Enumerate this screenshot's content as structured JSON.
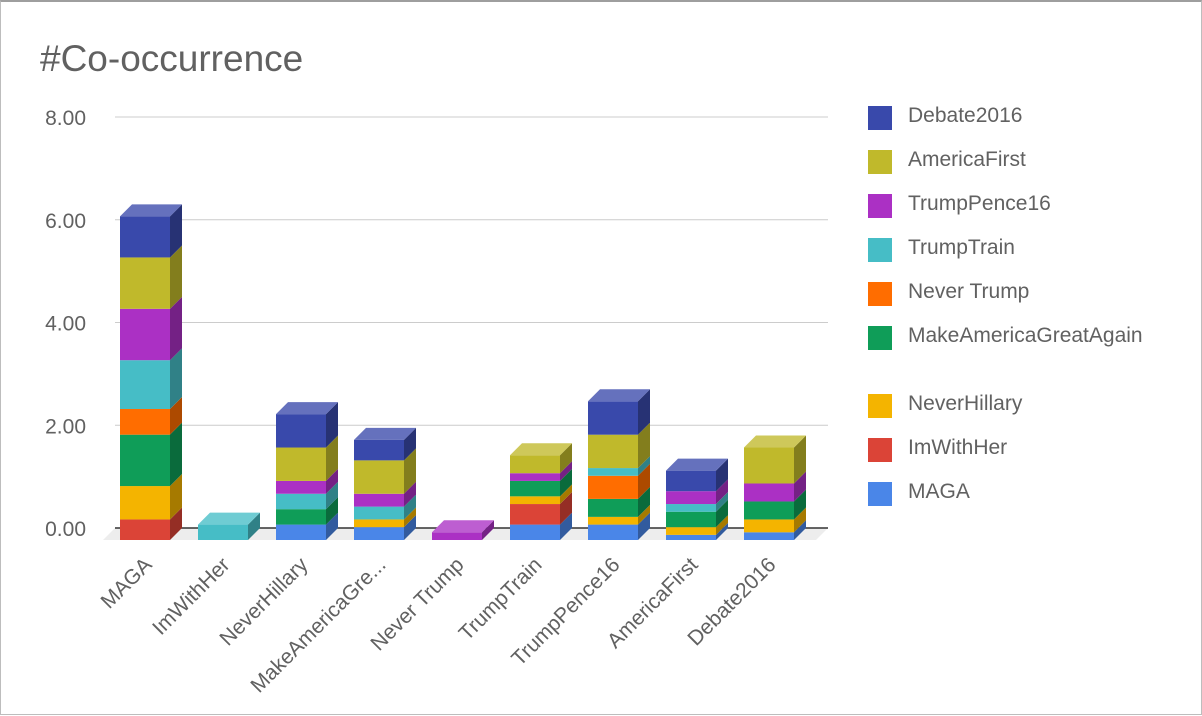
{
  "chart_data": {
    "type": "bar",
    "stacked": true,
    "three_d": true,
    "title": "#Co-occurrence",
    "categories": [
      "MAGA",
      "ImWithHer",
      "NeverHillary",
      "MakeAmericaGre...",
      "Never Trump",
      "TrumpTrain",
      "TrumpPence16",
      "AmericaFirst",
      "Debate2016"
    ],
    "y_ticks": [
      "0.00",
      "2.00",
      "4.00",
      "6.00",
      "8.00"
    ],
    "ylim": [
      0,
      8
    ],
    "grid": true,
    "legend_position": "right",
    "series": [
      {
        "name": "MAGA",
        "color": "#4a86e8",
        "values": [
          0,
          0,
          0.3,
          0.25,
          0,
          0.3,
          0.3,
          0.1,
          0.15
        ]
      },
      {
        "name": "ImWithHer",
        "color": "#db4437",
        "values": [
          0.4,
          0,
          0,
          0,
          0,
          0.4,
          0,
          0,
          0
        ]
      },
      {
        "name": "NeverHillary",
        "color": "#f4b400",
        "values": [
          0.65,
          0,
          0,
          0.15,
          0,
          0.15,
          0.15,
          0.15,
          0.25
        ]
      },
      {
        "name": "MakeAmericaGreatAgain",
        "color": "#0f9d58",
        "values": [
          1.0,
          0,
          0.3,
          0,
          0,
          0.3,
          0.35,
          0.3,
          0.35
        ]
      },
      {
        "name": "Never Trump",
        "color": "#ff6d00",
        "values": [
          0.5,
          0,
          0,
          0,
          0,
          0,
          0.45,
          0,
          0
        ]
      },
      {
        "name": "TrumpTrain",
        "color": "#46bdc6",
        "values": [
          0.95,
          0.3,
          0.3,
          0.25,
          0,
          0,
          0.15,
          0.15,
          0
        ]
      },
      {
        "name": "TrumpPence16",
        "color": "#ab30c4",
        "values": [
          1.0,
          0,
          0.25,
          0.25,
          0.15,
          0.15,
          0,
          0.25,
          0.35
        ]
      },
      {
        "name": "AmericaFirst",
        "color": "#c0b92b",
        "values": [
          1.0,
          0,
          0.65,
          0.65,
          0,
          0.35,
          0.65,
          0,
          0.7
        ]
      },
      {
        "name": "Debate2016",
        "color": "#3949ab",
        "values": [
          0.8,
          0,
          0.65,
          0.4,
          0,
          0,
          0.65,
          0.4,
          0
        ]
      }
    ]
  }
}
